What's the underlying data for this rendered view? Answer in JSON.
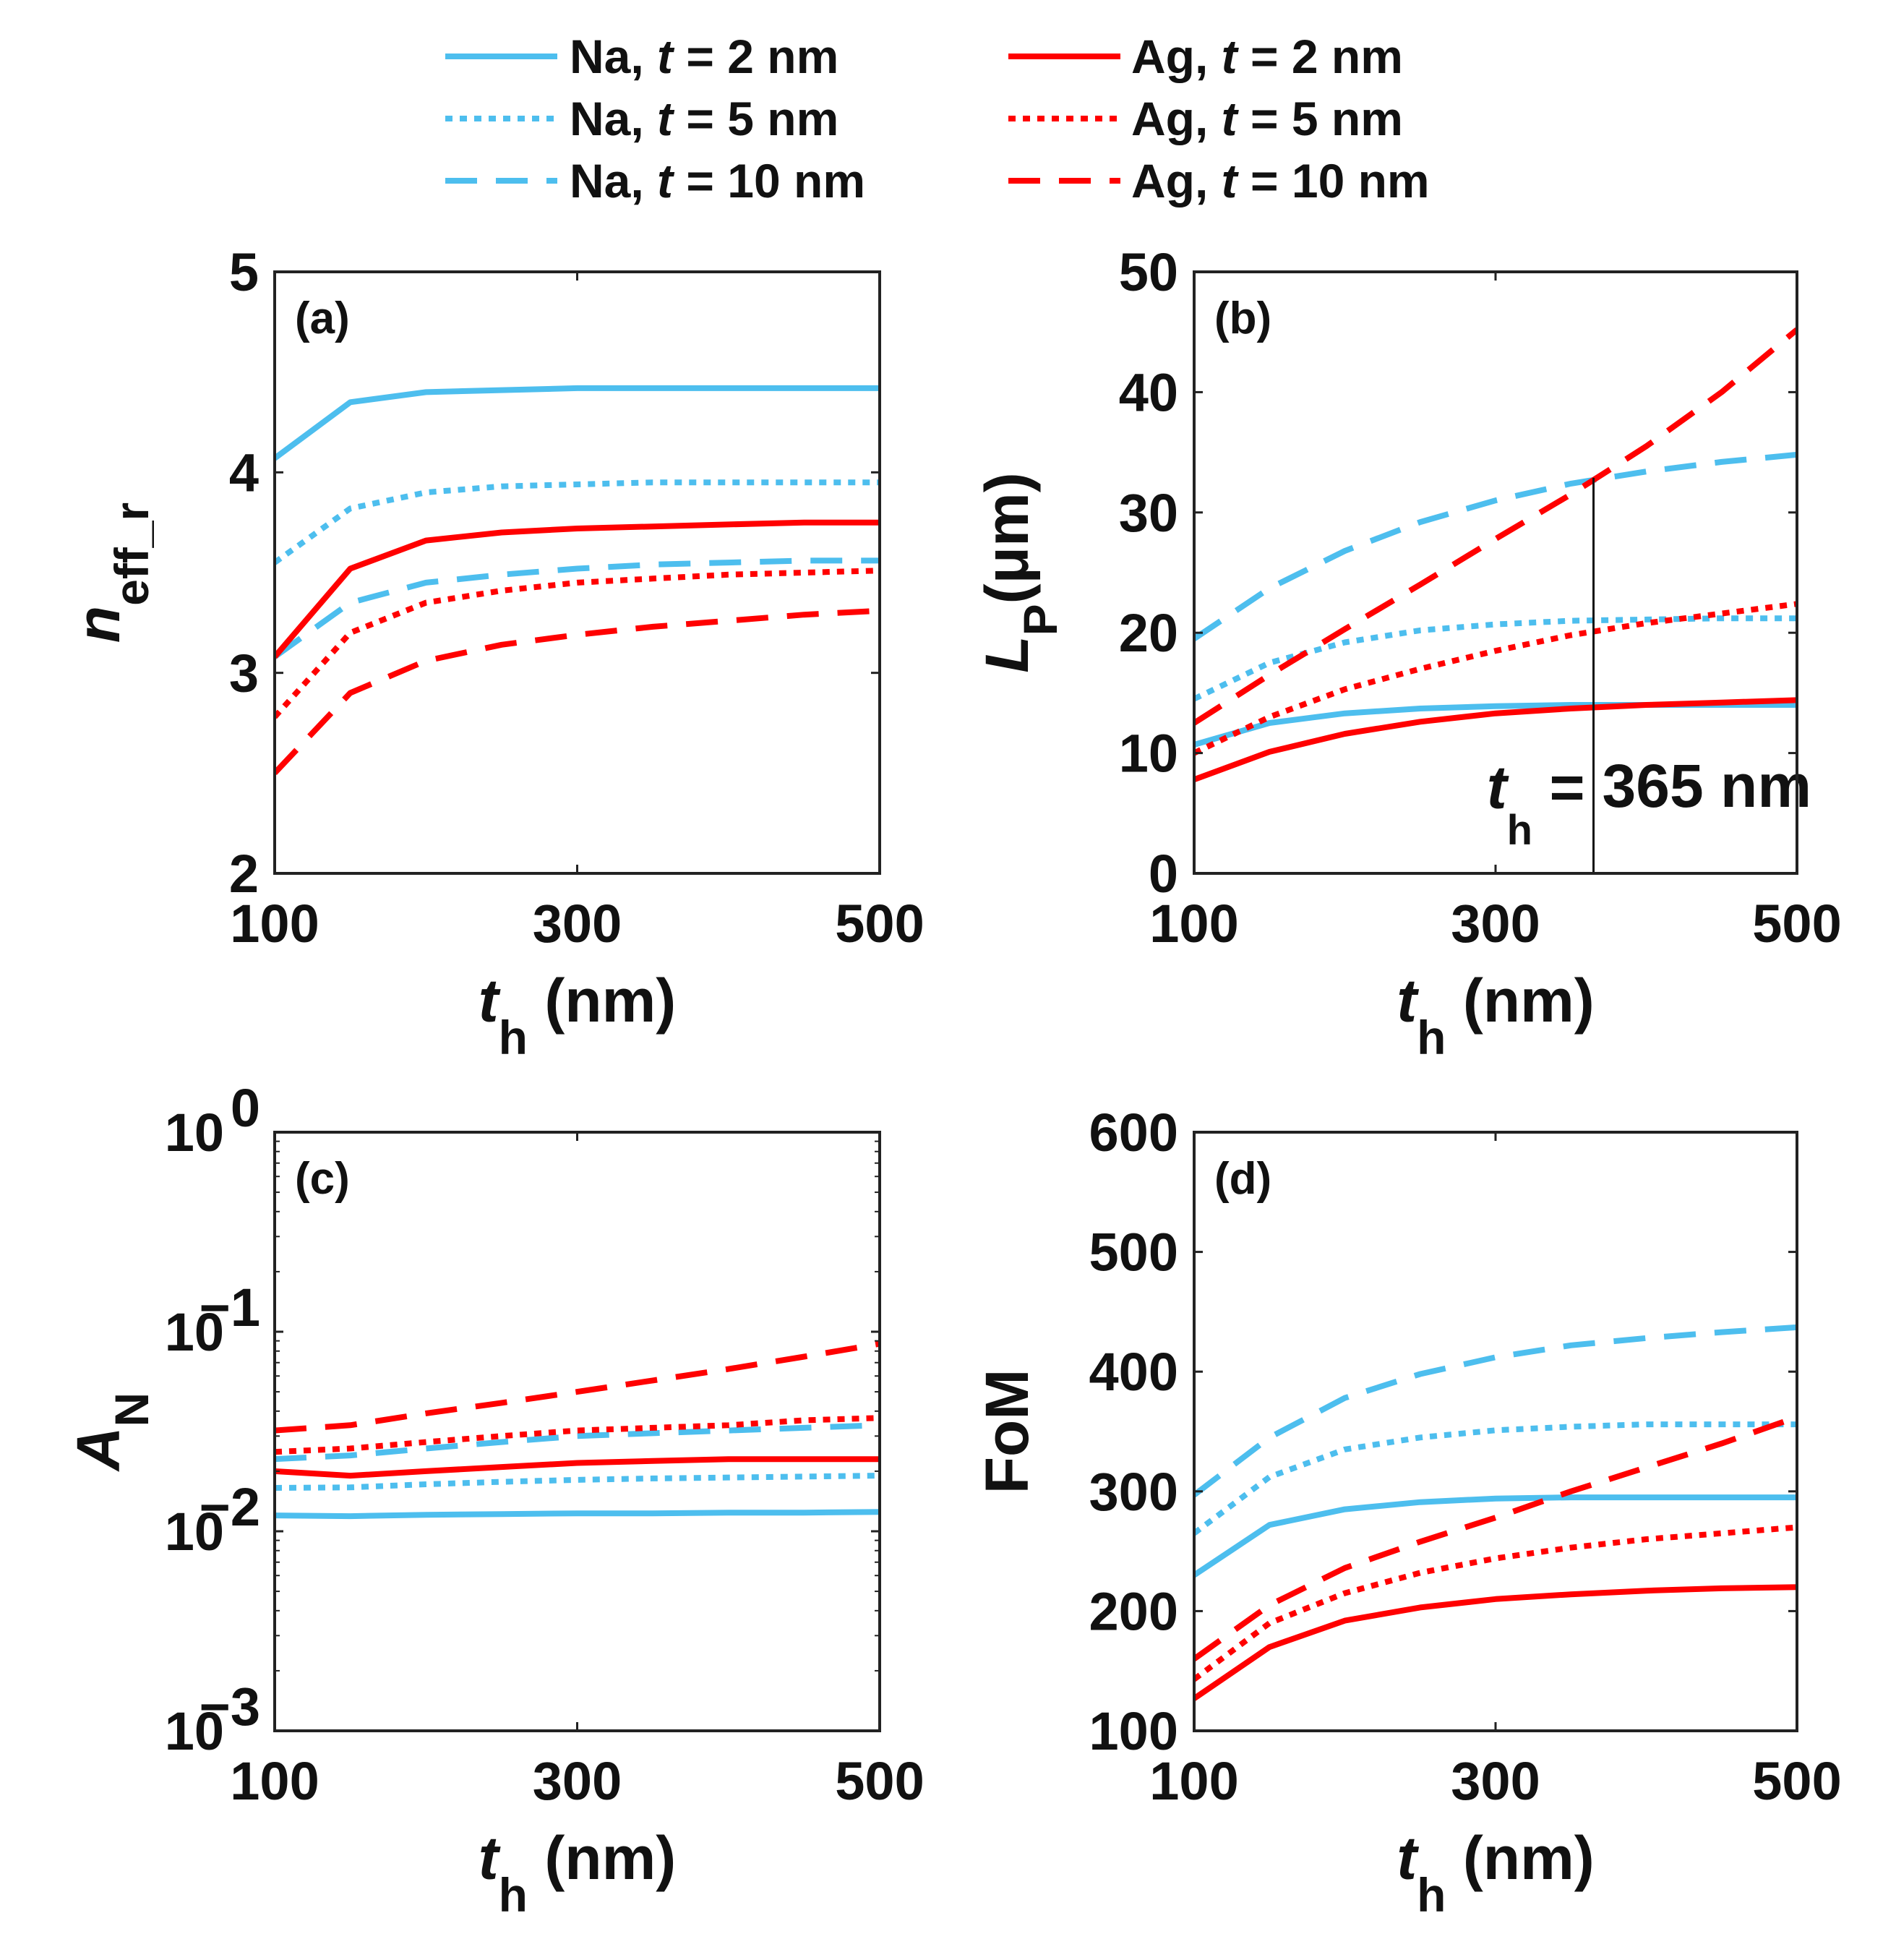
{
  "legend": [
    {
      "metal": "Na",
      "t": "2",
      "label_pre": "Na, ",
      "label_var": "t",
      "label_post": " = 2 nm",
      "color": "#4DBEEE",
      "style": "solid"
    },
    {
      "metal": "Na",
      "t": "5",
      "label_pre": "Na, ",
      "label_var": "t",
      "label_post": " = 5 nm",
      "color": "#4DBEEE",
      "style": "dotted"
    },
    {
      "metal": "Na",
      "t": "10",
      "label_pre": "Na, ",
      "label_var": "t",
      "label_post": " = 10 nm",
      "color": "#4DBEEE",
      "style": "dashed"
    },
    {
      "metal": "Ag",
      "t": "2",
      "label_pre": "Ag, ",
      "label_var": "t",
      "label_post": " = 2 nm",
      "color": "#FF0000",
      "style": "solid"
    },
    {
      "metal": "Ag",
      "t": "5",
      "label_pre": "Ag, ",
      "label_var": "t",
      "label_post": " = 5 nm",
      "color": "#FF0000",
      "style": "dotted"
    },
    {
      "metal": "Ag",
      "t": "10",
      "label_pre": "Ag, ",
      "label_var": "t",
      "label_post": " = 10 nm",
      "color": "#FF0000",
      "style": "dashed"
    }
  ],
  "chart_data": [
    {
      "type": "line",
      "panel": "(a)",
      "xlabel": "t_h (nm)",
      "xlabel_main": "t",
      "xlabel_sub": "h",
      "xlabel_unit": " (nm)",
      "ylabel_main": "n",
      "ylabel_sub": "eff_r",
      "yscale": "linear",
      "xlim": [
        100,
        500
      ],
      "ylim": [
        2,
        5
      ],
      "xticks": [
        "100",
        "300",
        "500"
      ],
      "xtick_values": [
        100,
        300,
        500
      ],
      "yticks": [
        "2",
        "3",
        "4",
        "5"
      ],
      "ytick_values": [
        2,
        3,
        4,
        5
      ],
      "x": [
        100,
        150,
        200,
        250,
        300,
        350,
        400,
        450,
        500
      ],
      "series": [
        {
          "name": "Na, t = 2 nm",
          "values": [
            4.07,
            4.35,
            4.4,
            4.41,
            4.42,
            4.42,
            4.42,
            4.42,
            4.42
          ]
        },
        {
          "name": "Na, t = 5 nm",
          "values": [
            3.55,
            3.82,
            3.9,
            3.93,
            3.94,
            3.95,
            3.95,
            3.95,
            3.95
          ]
        },
        {
          "name": "Na, t = 10 nm",
          "values": [
            3.08,
            3.35,
            3.45,
            3.49,
            3.52,
            3.54,
            3.55,
            3.56,
            3.56
          ]
        },
        {
          "name": "Ag, t = 2 nm",
          "values": [
            3.08,
            3.52,
            3.66,
            3.7,
            3.72,
            3.73,
            3.74,
            3.75,
            3.75
          ]
        },
        {
          "name": "Ag, t = 5 nm",
          "values": [
            2.78,
            3.2,
            3.35,
            3.41,
            3.45,
            3.47,
            3.49,
            3.5,
            3.51
          ]
        },
        {
          "name": "Ag, t = 10 nm",
          "values": [
            2.5,
            2.9,
            3.06,
            3.14,
            3.19,
            3.23,
            3.26,
            3.29,
            3.31
          ]
        }
      ]
    },
    {
      "type": "line",
      "panel": "(b)",
      "xlabel": "t_h (nm)",
      "xlabel_main": "t",
      "xlabel_sub": "h",
      "xlabel_unit": " (nm)",
      "ylabel_main": "L",
      "ylabel_sub": "P",
      "ylabel_unit": "(μm)",
      "yscale": "linear",
      "xlim": [
        100,
        500
      ],
      "ylim": [
        0,
        50
      ],
      "xticks": [
        "100",
        "300",
        "500"
      ],
      "xtick_values": [
        100,
        300,
        500
      ],
      "yticks": [
        "0",
        "10",
        "20",
        "30",
        "40",
        "50"
      ],
      "ytick_values": [
        0,
        10,
        20,
        30,
        40,
        50
      ],
      "x": [
        100,
        150,
        200,
        250,
        300,
        350,
        400,
        450,
        500
      ],
      "series": [
        {
          "name": "Na, t = 2 nm",
          "values": [
            10.7,
            12.5,
            13.3,
            13.7,
            13.9,
            14.0,
            14.0,
            14.0,
            14.0
          ]
        },
        {
          "name": "Na, t = 5 nm",
          "values": [
            14.5,
            17.5,
            19.2,
            20.2,
            20.7,
            21.0,
            21.1,
            21.2,
            21.2
          ]
        },
        {
          "name": "Na, t = 10 nm",
          "values": [
            19.5,
            23.7,
            26.8,
            29.2,
            31.0,
            32.4,
            33.4,
            34.2,
            34.8
          ]
        },
        {
          "name": "Ag, t = 2 nm",
          "values": [
            7.8,
            10.1,
            11.6,
            12.6,
            13.3,
            13.7,
            14.0,
            14.2,
            14.4
          ]
        },
        {
          "name": "Ag, t = 5 nm",
          "values": [
            10.0,
            13.0,
            15.3,
            17.0,
            18.5,
            19.8,
            20.8,
            21.6,
            22.4
          ]
        },
        {
          "name": "Ag, t = 10 nm",
          "values": [
            12.5,
            16.5,
            20.3,
            24.0,
            27.8,
            31.5,
            35.5,
            40.0,
            45.2
          ]
        }
      ],
      "annotation": {
        "x": 365,
        "text_main": "t",
        "text_sub": "h",
        "text_eq": " = ",
        "text_val": "365 nm"
      }
    },
    {
      "type": "line",
      "panel": "(c)",
      "xlabel": "t_h (nm)",
      "xlabel_main": "t",
      "xlabel_sub": "h",
      "xlabel_unit": " (nm)",
      "ylabel_main": "A",
      "ylabel_sub": "N",
      "yscale": "log",
      "xlim": [
        100,
        500
      ],
      "ylim": [
        0.001,
        1
      ],
      "xticks": [
        "100",
        "300",
        "500"
      ],
      "xtick_values": [
        100,
        300,
        500
      ],
      "yticks": [
        {
          "base": "10",
          "exp": "−3"
        },
        {
          "base": "10",
          "exp": "−2"
        },
        {
          "base": "10",
          "exp": "−1"
        },
        {
          "base": "10",
          "exp": "0"
        }
      ],
      "ytick_values": [
        0.001,
        0.01,
        0.1,
        1
      ],
      "x": [
        100,
        150,
        200,
        250,
        300,
        350,
        400,
        450,
        500
      ],
      "series": [
        {
          "name": "Na, t = 2 nm",
          "values": [
            0.012,
            0.0119,
            0.0121,
            0.0122,
            0.0123,
            0.0123,
            0.0124,
            0.0124,
            0.0125
          ]
        },
        {
          "name": "Na, t = 5 nm",
          "values": [
            0.0165,
            0.0166,
            0.0172,
            0.0177,
            0.0181,
            0.0184,
            0.0186,
            0.0188,
            0.019
          ]
        },
        {
          "name": "Na, t = 10 nm",
          "values": [
            0.023,
            0.024,
            0.026,
            0.028,
            0.03,
            0.031,
            0.032,
            0.033,
            0.034
          ]
        },
        {
          "name": "Ag, t = 2 nm",
          "values": [
            0.02,
            0.019,
            0.02,
            0.021,
            0.022,
            0.0225,
            0.023,
            0.023,
            0.023
          ]
        },
        {
          "name": "Ag, t = 5 nm",
          "values": [
            0.025,
            0.026,
            0.028,
            0.03,
            0.032,
            0.033,
            0.034,
            0.036,
            0.037
          ]
        },
        {
          "name": "Ag, t = 10 nm",
          "values": [
            0.032,
            0.034,
            0.039,
            0.044,
            0.05,
            0.057,
            0.065,
            0.075,
            0.087
          ]
        }
      ]
    },
    {
      "type": "line",
      "panel": "(d)",
      "xlabel": "t_h (nm)",
      "xlabel_main": "t",
      "xlabel_sub": "h",
      "xlabel_unit": " (nm)",
      "ylabel_main": "FoM",
      "ylabel_sub": "",
      "yscale": "linear",
      "xlim": [
        100,
        500
      ],
      "ylim": [
        100,
        600
      ],
      "xticks": [
        "100",
        "300",
        "500"
      ],
      "xtick_values": [
        100,
        300,
        500
      ],
      "yticks": [
        "100",
        "200",
        "300",
        "400",
        "500",
        "600"
      ],
      "ytick_values": [
        100,
        200,
        300,
        400,
        500,
        600
      ],
      "x": [
        100,
        150,
        200,
        250,
        300,
        350,
        400,
        450,
        500
      ],
      "series": [
        {
          "name": "Na, t = 2 nm",
          "values": [
            230,
            272,
            285,
            291,
            294,
            295,
            295,
            295,
            295
          ]
        },
        {
          "name": "Na, t = 5 nm",
          "values": [
            265,
            312,
            335,
            345,
            351,
            354,
            356,
            356,
            356
          ]
        },
        {
          "name": "Na, t = 10 nm",
          "values": [
            297,
            345,
            378,
            398,
            412,
            422,
            428,
            433,
            437
          ]
        },
        {
          "name": "Ag, t = 2 nm",
          "values": [
            127,
            170,
            192,
            203,
            210,
            214,
            217,
            219,
            220
          ]
        },
        {
          "name": "Ag, t = 5 nm",
          "values": [
            143,
            190,
            215,
            232,
            244,
            253,
            260,
            265,
            270
          ]
        },
        {
          "name": "Ag, t = 10 nm",
          "values": [
            160,
            205,
            236,
            258,
            278,
            300,
            320,
            340,
            362
          ]
        }
      ]
    }
  ]
}
